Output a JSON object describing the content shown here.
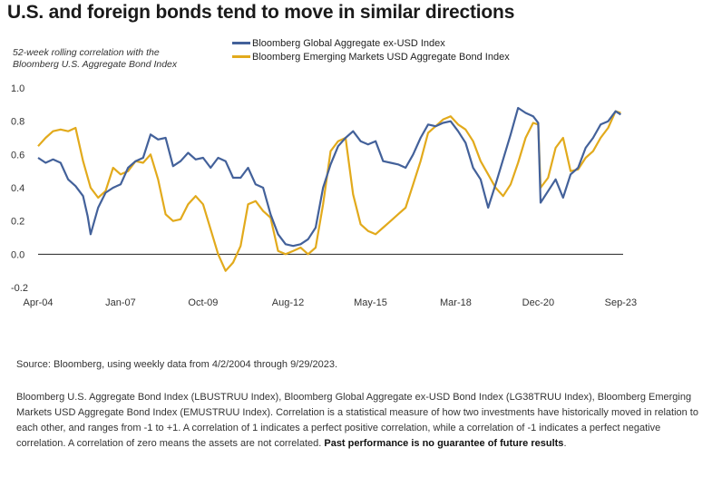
{
  "chart_data": {
    "type": "line",
    "title": "U.S. and foreign bonds tend to move in similar directions",
    "subtitle_line1": "52-week rolling correlation with the",
    "subtitle_line2": "Bloomberg U.S. Aggregate Bond Index",
    "ylim": [
      -0.2,
      1.0
    ],
    "y_ticks": [
      "1.0",
      "0.8",
      "0.6",
      "0.4",
      "0.2",
      "0.0",
      "-0.2"
    ],
    "y_tick_values": [
      1.0,
      0.8,
      0.6,
      0.4,
      0.2,
      0.0,
      -0.2
    ],
    "xlim": [
      2004.25,
      2023.75
    ],
    "x_ticks": [
      "Apr-04",
      "Jan-07",
      "Oct-09",
      "Aug-12",
      "May-15",
      "Mar-18",
      "Dec-20",
      "Sep-23"
    ],
    "x_tick_values": [
      2004.25,
      2007.0,
      2009.75,
      2012.58,
      2015.33,
      2018.17,
      2020.92,
      2023.67
    ],
    "series": [
      {
        "name": "Bloomberg Global Aggregate ex-USD Index",
        "color": "#43619a",
        "points": [
          [
            2004.25,
            0.58
          ],
          [
            2004.5,
            0.55
          ],
          [
            2004.75,
            0.57
          ],
          [
            2005.0,
            0.55
          ],
          [
            2005.25,
            0.45
          ],
          [
            2005.5,
            0.41
          ],
          [
            2005.75,
            0.35
          ],
          [
            2005.9,
            0.23
          ],
          [
            2006.0,
            0.12
          ],
          [
            2006.25,
            0.28
          ],
          [
            2006.5,
            0.37
          ],
          [
            2006.75,
            0.4
          ],
          [
            2007.0,
            0.42
          ],
          [
            2007.25,
            0.52
          ],
          [
            2007.5,
            0.56
          ],
          [
            2007.75,
            0.58
          ],
          [
            2008.0,
            0.72
          ],
          [
            2008.25,
            0.69
          ],
          [
            2008.5,
            0.7
          ],
          [
            2008.75,
            0.53
          ],
          [
            2009.0,
            0.56
          ],
          [
            2009.25,
            0.61
          ],
          [
            2009.5,
            0.57
          ],
          [
            2009.75,
            0.58
          ],
          [
            2010.0,
            0.52
          ],
          [
            2010.25,
            0.58
          ],
          [
            2010.5,
            0.56
          ],
          [
            2010.75,
            0.46
          ],
          [
            2011.0,
            0.46
          ],
          [
            2011.25,
            0.52
          ],
          [
            2011.5,
            0.42
          ],
          [
            2011.75,
            0.4
          ],
          [
            2012.0,
            0.24
          ],
          [
            2012.25,
            0.12
          ],
          [
            2012.5,
            0.06
          ],
          [
            2012.75,
            0.05
          ],
          [
            2013.0,
            0.06
          ],
          [
            2013.25,
            0.09
          ],
          [
            2013.5,
            0.16
          ],
          [
            2013.75,
            0.4
          ],
          [
            2014.0,
            0.54
          ],
          [
            2014.25,
            0.65
          ],
          [
            2014.5,
            0.7
          ],
          [
            2014.75,
            0.74
          ],
          [
            2015.0,
            0.68
          ],
          [
            2015.25,
            0.66
          ],
          [
            2015.5,
            0.68
          ],
          [
            2015.75,
            0.56
          ],
          [
            2016.0,
            0.55
          ],
          [
            2016.25,
            0.54
          ],
          [
            2016.5,
            0.52
          ],
          [
            2016.75,
            0.6
          ],
          [
            2017.0,
            0.7
          ],
          [
            2017.25,
            0.78
          ],
          [
            2017.5,
            0.77
          ],
          [
            2017.75,
            0.79
          ],
          [
            2018.0,
            0.8
          ],
          [
            2018.25,
            0.74
          ],
          [
            2018.5,
            0.67
          ],
          [
            2018.75,
            0.52
          ],
          [
            2019.0,
            0.45
          ],
          [
            2019.25,
            0.28
          ],
          [
            2019.5,
            0.42
          ],
          [
            2019.75,
            0.57
          ],
          [
            2020.0,
            0.72
          ],
          [
            2020.25,
            0.88
          ],
          [
            2020.5,
            0.85
          ],
          [
            2020.75,
            0.83
          ],
          [
            2020.92,
            0.79
          ],
          [
            2021.0,
            0.31
          ],
          [
            2021.25,
            0.38
          ],
          [
            2021.5,
            0.45
          ],
          [
            2021.75,
            0.34
          ],
          [
            2022.0,
            0.48
          ],
          [
            2022.25,
            0.52
          ],
          [
            2022.5,
            0.64
          ],
          [
            2022.75,
            0.7
          ],
          [
            2023.0,
            0.78
          ],
          [
            2023.25,
            0.8
          ],
          [
            2023.5,
            0.86
          ],
          [
            2023.67,
            0.84
          ]
        ]
      },
      {
        "name": "Bloomberg Emerging Markets USD Aggregate Bond Index",
        "color": "#e2aa1c",
        "points": [
          [
            2004.25,
            0.65
          ],
          [
            2004.5,
            0.7
          ],
          [
            2004.75,
            0.74
          ],
          [
            2005.0,
            0.75
          ],
          [
            2005.25,
            0.74
          ],
          [
            2005.5,
            0.76
          ],
          [
            2005.75,
            0.56
          ],
          [
            2006.0,
            0.4
          ],
          [
            2006.25,
            0.34
          ],
          [
            2006.5,
            0.38
          ],
          [
            2006.75,
            0.52
          ],
          [
            2007.0,
            0.48
          ],
          [
            2007.25,
            0.5
          ],
          [
            2007.5,
            0.56
          ],
          [
            2007.75,
            0.55
          ],
          [
            2008.0,
            0.6
          ],
          [
            2008.25,
            0.45
          ],
          [
            2008.5,
            0.24
          ],
          [
            2008.75,
            0.2
          ],
          [
            2009.0,
            0.21
          ],
          [
            2009.25,
            0.3
          ],
          [
            2009.5,
            0.35
          ],
          [
            2009.75,
            0.3
          ],
          [
            2010.0,
            0.15
          ],
          [
            2010.25,
            0.0
          ],
          [
            2010.5,
            -0.1
          ],
          [
            2010.75,
            -0.05
          ],
          [
            2011.0,
            0.05
          ],
          [
            2011.25,
            0.3
          ],
          [
            2011.5,
            0.32
          ],
          [
            2011.75,
            0.26
          ],
          [
            2012.0,
            0.22
          ],
          [
            2012.25,
            0.02
          ],
          [
            2012.5,
            0.0
          ],
          [
            2012.75,
            0.02
          ],
          [
            2013.0,
            0.04
          ],
          [
            2013.25,
            0.0
          ],
          [
            2013.5,
            0.04
          ],
          [
            2013.75,
            0.3
          ],
          [
            2014.0,
            0.62
          ],
          [
            2014.25,
            0.68
          ],
          [
            2014.5,
            0.7
          ],
          [
            2014.75,
            0.36
          ],
          [
            2015.0,
            0.18
          ],
          [
            2015.25,
            0.14
          ],
          [
            2015.5,
            0.12
          ],
          [
            2015.75,
            0.16
          ],
          [
            2016.0,
            0.2
          ],
          [
            2016.25,
            0.24
          ],
          [
            2016.5,
            0.28
          ],
          [
            2016.75,
            0.42
          ],
          [
            2017.0,
            0.56
          ],
          [
            2017.25,
            0.73
          ],
          [
            2017.5,
            0.77
          ],
          [
            2017.75,
            0.81
          ],
          [
            2018.0,
            0.83
          ],
          [
            2018.25,
            0.78
          ],
          [
            2018.5,
            0.75
          ],
          [
            2018.75,
            0.68
          ],
          [
            2019.0,
            0.56
          ],
          [
            2019.25,
            0.48
          ],
          [
            2019.5,
            0.4
          ],
          [
            2019.75,
            0.35
          ],
          [
            2020.0,
            0.42
          ],
          [
            2020.25,
            0.55
          ],
          [
            2020.5,
            0.7
          ],
          [
            2020.75,
            0.79
          ],
          [
            2020.92,
            0.78
          ],
          [
            2021.0,
            0.4
          ],
          [
            2021.25,
            0.46
          ],
          [
            2021.5,
            0.64
          ],
          [
            2021.75,
            0.7
          ],
          [
            2022.0,
            0.5
          ],
          [
            2022.25,
            0.51
          ],
          [
            2022.5,
            0.58
          ],
          [
            2022.75,
            0.62
          ],
          [
            2023.0,
            0.7
          ],
          [
            2023.25,
            0.76
          ],
          [
            2023.5,
            0.86
          ],
          [
            2023.67,
            0.85
          ]
        ]
      }
    ]
  },
  "footer": {
    "source": "Source: Bloomberg, using weekly data from 4/2/2004 through 9/29/2023.",
    "notes": "Bloomberg U.S. Aggregate Bond Index (LBUSTRUU Index), Bloomberg Global Aggregate ex-USD Bond Index (LG38TRUU Index), Bloomberg Emerging Markets USD Aggregate Bond Index (EMUSTRUU Index). Correlation is a statistical measure of how two investments have historically moved in relation to each other, and ranges from -1 to +1. A correlation of 1 indicates a perfect positive correlation, while a correlation of -1 indicates a perfect negative correlation. A correlation of zero means the assets are not correlated.",
    "disclaimer": "Past performance is no guarantee of future results",
    "end_mark": "."
  }
}
